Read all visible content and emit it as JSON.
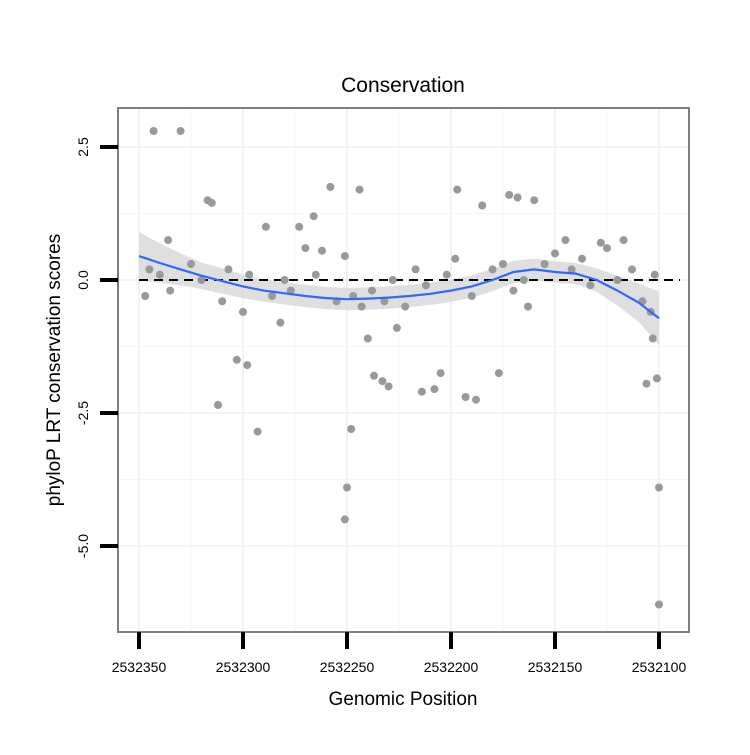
{
  "chart_data": {
    "type": "scatter",
    "title": "Conservation",
    "xlabel": "Genomic Position",
    "ylabel": "phyloP LRT conservation scores",
    "x_reversed": true,
    "xlim": [
      2532100,
      2532350
    ],
    "ylim": [
      -6.5,
      3.2
    ],
    "x_ticks": [
      2532350,
      2532300,
      2532250,
      2532200,
      2532150,
      2532100
    ],
    "x_tick_labels": [
      "2532350",
      "2532300",
      "2532250",
      "2532200",
      "2532150",
      "2532100"
    ],
    "y_ticks": [
      2.5,
      0.0,
      -2.5,
      -5.0
    ],
    "y_tick_labels": [
      "2.5",
      "0.0",
      "-2.5",
      "-5.0"
    ],
    "grid": true,
    "reference_line": {
      "y": 0,
      "style": "dashed"
    },
    "series": [
      {
        "name": "phyloP scores",
        "kind": "points",
        "color": "#999999",
        "x": [
          2532343,
          2532330,
          2532336,
          2532317,
          2532315,
          2532312,
          2532303,
          2532298,
          2532293,
          2532289,
          2532282,
          2532273,
          2532266,
          2532270,
          2532262,
          2532258,
          2532251,
          2532244,
          2532250,
          2532251,
          2532248,
          2532240,
          2532233,
          2532237,
          2532230,
          2532226,
          2532214,
          2532208,
          2532205,
          2532197,
          2532193,
          2532188,
          2532185,
          2532177,
          2532172,
          2532168,
          2532163,
          2532160,
          2532145,
          2532128,
          2532117,
          2532106,
          2532101,
          2532100,
          2532100,
          2532103,
          2532102,
          2532347,
          2532345,
          2532340,
          2532335,
          2532325,
          2532320,
          2532310,
          2532307,
          2532300,
          2532297,
          2532286,
          2532280,
          2532277,
          2532265,
          2532255,
          2532247,
          2532243,
          2532238,
          2532232,
          2532228,
          2532222,
          2532217,
          2532212,
          2532202,
          2532198,
          2532190,
          2532180,
          2532175,
          2532170,
          2532165,
          2532155,
          2532150,
          2532142,
          2532137,
          2532133,
          2532125,
          2532120,
          2532113,
          2532108,
          2532104
        ],
        "y": [
          2.8,
          2.8,
          0.75,
          1.5,
          1.45,
          -2.35,
          -1.5,
          -1.6,
          -2.85,
          1.0,
          -0.8,
          1.0,
          1.2,
          0.6,
          0.55,
          1.75,
          0.45,
          1.7,
          -3.9,
          -4.5,
          -2.8,
          -1.1,
          -1.9,
          -1.8,
          -2.0,
          -0.9,
          -2.1,
          -2.05,
          -1.75,
          1.7,
          -2.2,
          -2.25,
          1.4,
          -1.75,
          1.6,
          1.55,
          -0.5,
          1.5,
          0.75,
          0.7,
          0.75,
          -1.95,
          -1.85,
          -3.9,
          -6.1,
          -1.1,
          0.1,
          -0.3,
          0.2,
          0.1,
          -0.2,
          0.3,
          0.0,
          -0.4,
          0.2,
          -0.6,
          0.1,
          -0.3,
          0.0,
          -0.2,
          0.1,
          -0.4,
          -0.3,
          -0.5,
          -0.2,
          -0.4,
          0.0,
          -0.5,
          0.2,
          -0.1,
          0.1,
          0.4,
          -0.3,
          0.2,
          0.3,
          -0.2,
          0.0,
          0.3,
          0.5,
          0.2,
          0.4,
          -0.1,
          0.6,
          0.0,
          0.2,
          -0.4,
          -0.6
        ]
      },
      {
        "name": "loess fit",
        "kind": "smooth",
        "color": "#3366ff",
        "x": [
          2532350,
          2532340,
          2532330,
          2532320,
          2532310,
          2532300,
          2532290,
          2532280,
          2532270,
          2532260,
          2532250,
          2532240,
          2532230,
          2532220,
          2532210,
          2532200,
          2532190,
          2532180,
          2532170,
          2532160,
          2532150,
          2532140,
          2532130,
          2532120,
          2532110,
          2532100
        ],
        "y": [
          0.45,
          0.32,
          0.2,
          0.08,
          -0.02,
          -0.12,
          -0.2,
          -0.25,
          -0.3,
          -0.34,
          -0.36,
          -0.35,
          -0.33,
          -0.3,
          -0.26,
          -0.2,
          -0.12,
          0.0,
          0.15,
          0.2,
          0.15,
          0.12,
          0.0,
          -0.2,
          -0.42,
          -0.72
        ],
        "lower": [
          0.0,
          -0.05,
          -0.1,
          -0.17,
          -0.26,
          -0.34,
          -0.41,
          -0.46,
          -0.51,
          -0.55,
          -0.57,
          -0.56,
          -0.54,
          -0.51,
          -0.47,
          -0.41,
          -0.33,
          -0.21,
          -0.06,
          0.0,
          -0.05,
          -0.08,
          -0.22,
          -0.48,
          -0.78,
          -1.22
        ],
        "upper": [
          0.9,
          0.69,
          0.5,
          0.33,
          0.22,
          0.1,
          0.01,
          -0.04,
          -0.09,
          -0.13,
          -0.15,
          -0.14,
          -0.12,
          -0.09,
          -0.05,
          0.01,
          0.09,
          0.21,
          0.36,
          0.4,
          0.35,
          0.32,
          0.22,
          0.08,
          -0.06,
          -0.22
        ],
        "band_color": "#d9d9d9"
      }
    ]
  }
}
